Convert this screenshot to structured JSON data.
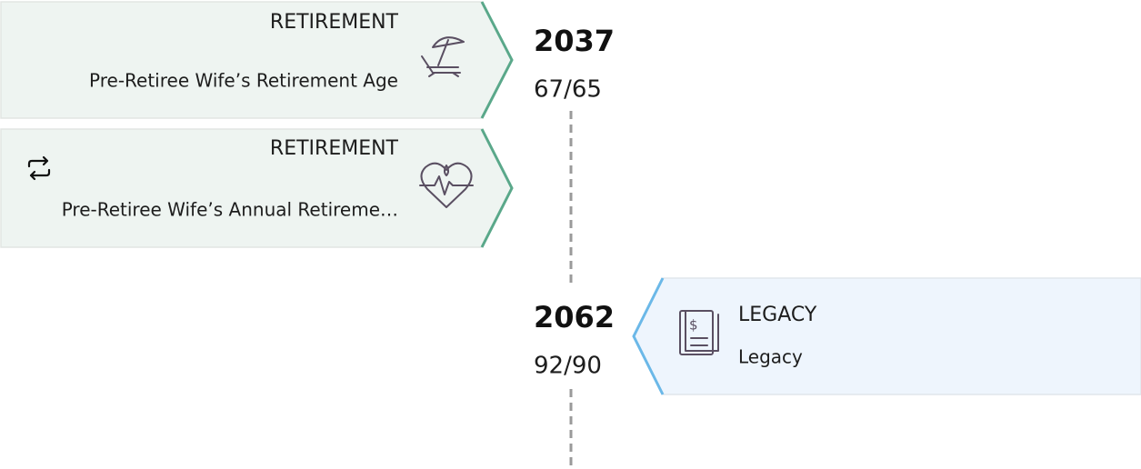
{
  "timeline": [
    {
      "year": "2037",
      "ages": "67/65",
      "cards": [
        {
          "category": "RETIREMENT",
          "label": "Pre-Retiree Wife’s Retirement Age"
        },
        {
          "category": "RETIREMENT",
          "label": "Pre-Retiree Wife’s Annual Retireme…"
        }
      ]
    },
    {
      "year": "2062",
      "ages": "92/90",
      "cards": [
        {
          "category": "LEGACY",
          "label": "Legacy"
        }
      ]
    }
  ]
}
